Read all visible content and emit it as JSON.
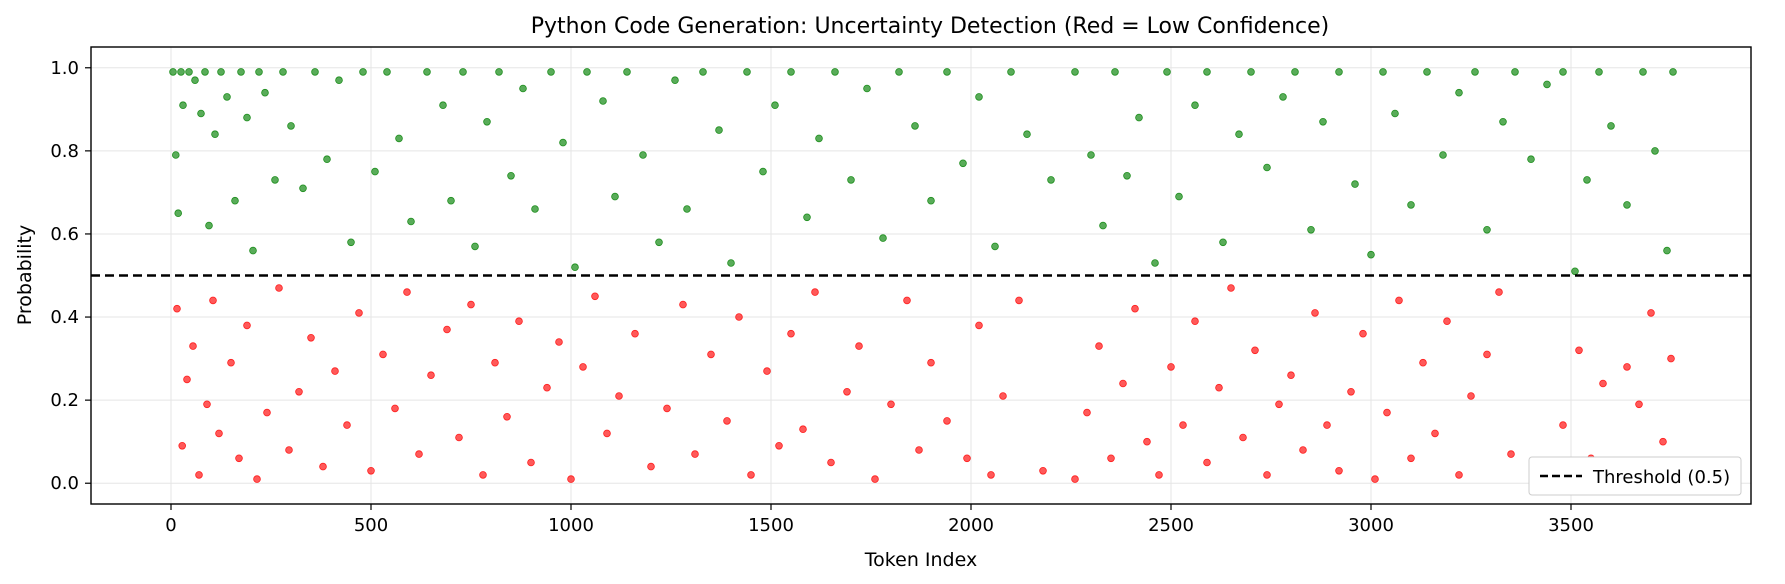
{
  "chart_data": {
    "type": "scatter",
    "title": "Python Code Generation: Uncertainty Detection (Red = Low Confidence)",
    "xlabel": "Token Index",
    "ylabel": "Probability",
    "xlim": [
      -200,
      3950
    ],
    "ylim": [
      -0.05,
      1.05
    ],
    "xticks": [
      0,
      500,
      1000,
      1500,
      2000,
      2500,
      3000,
      3500
    ],
    "yticks": [
      0.0,
      0.2,
      0.4,
      0.6,
      0.8,
      1.0
    ],
    "ytick_labels": [
      "0.0",
      "0.2",
      "0.4",
      "0.6",
      "0.8",
      "1.0"
    ],
    "grid": true,
    "threshold": 0.5,
    "legend": {
      "placement": "bottom-right",
      "entries": [
        "Threshold (0.5)"
      ]
    },
    "colors": {
      "high_confidence": "#008000",
      "low_confidence": "#ff0000",
      "threshold_line": "#000000"
    },
    "series": [
      {
        "color": "#008000",
        "points": [
          [
            5,
            0.99
          ],
          [
            12,
            0.79
          ],
          [
            18,
            0.65
          ],
          [
            25,
            0.99
          ],
          [
            30,
            0.91
          ],
          [
            45,
            0.99
          ],
          [
            60,
            0.97
          ],
          [
            75,
            0.89
          ],
          [
            85,
            0.99
          ],
          [
            95,
            0.62
          ],
          [
            110,
            0.84
          ],
          [
            125,
            0.99
          ],
          [
            140,
            0.93
          ],
          [
            160,
            0.68
          ],
          [
            175,
            0.99
          ],
          [
            190,
            0.88
          ],
          [
            205,
            0.56
          ],
          [
            220,
            0.99
          ],
          [
            235,
            0.94
          ],
          [
            260,
            0.73
          ],
          [
            280,
            0.99
          ],
          [
            300,
            0.86
          ],
          [
            330,
            0.71
          ],
          [
            360,
            0.99
          ],
          [
            390,
            0.78
          ],
          [
            420,
            0.97
          ],
          [
            450,
            0.58
          ],
          [
            480,
            0.99
          ],
          [
            510,
            0.75
          ],
          [
            540,
            0.99
          ],
          [
            570,
            0.83
          ],
          [
            600,
            0.63
          ],
          [
            640,
            0.99
          ],
          [
            680,
            0.91
          ],
          [
            700,
            0.68
          ],
          [
            730,
            0.99
          ],
          [
            760,
            0.57
          ],
          [
            790,
            0.87
          ],
          [
            820,
            0.99
          ],
          [
            850,
            0.74
          ],
          [
            880,
            0.95
          ],
          [
            910,
            0.66
          ],
          [
            950,
            0.99
          ],
          [
            980,
            0.82
          ],
          [
            1010,
            0.52
          ],
          [
            1040,
            0.99
          ],
          [
            1080,
            0.92
          ],
          [
            1110,
            0.69
          ],
          [
            1140,
            0.99
          ],
          [
            1180,
            0.79
          ],
          [
            1220,
            0.58
          ],
          [
            1260,
            0.97
          ],
          [
            1290,
            0.66
          ],
          [
            1330,
            0.99
          ],
          [
            1370,
            0.85
          ],
          [
            1400,
            0.53
          ],
          [
            1440,
            0.99
          ],
          [
            1480,
            0.75
          ],
          [
            1510,
            0.91
          ],
          [
            1550,
            0.99
          ],
          [
            1590,
            0.64
          ],
          [
            1620,
            0.83
          ],
          [
            1660,
            0.99
          ],
          [
            1700,
            0.73
          ],
          [
            1740,
            0.95
          ],
          [
            1780,
            0.59
          ],
          [
            1820,
            0.99
          ],
          [
            1860,
            0.86
          ],
          [
            1900,
            0.68
          ],
          [
            1940,
            0.99
          ],
          [
            1980,
            0.77
          ],
          [
            2020,
            0.93
          ],
          [
            2060,
            0.57
          ],
          [
            2100,
            0.99
          ],
          [
            2140,
            0.84
          ],
          [
            2200,
            0.73
          ],
          [
            2260,
            0.99
          ],
          [
            2300,
            0.79
          ],
          [
            2330,
            0.62
          ],
          [
            2360,
            0.99
          ],
          [
            2390,
            0.74
          ],
          [
            2420,
            0.88
          ],
          [
            2460,
            0.53
          ],
          [
            2490,
            0.99
          ],
          [
            2520,
            0.69
          ],
          [
            2560,
            0.91
          ],
          [
            2590,
            0.99
          ],
          [
            2630,
            0.58
          ],
          [
            2670,
            0.84
          ],
          [
            2700,
            0.99
          ],
          [
            2740,
            0.76
          ],
          [
            2780,
            0.93
          ],
          [
            2810,
            0.99
          ],
          [
            2850,
            0.61
          ],
          [
            2880,
            0.87
          ],
          [
            2920,
            0.99
          ],
          [
            2960,
            0.72
          ],
          [
            3000,
            0.55
          ],
          [
            3030,
            0.99
          ],
          [
            3060,
            0.89
          ],
          [
            3100,
            0.67
          ],
          [
            3140,
            0.99
          ],
          [
            3180,
            0.79
          ],
          [
            3220,
            0.94
          ],
          [
            3260,
            0.99
          ],
          [
            3290,
            0.61
          ],
          [
            3330,
            0.87
          ],
          [
            3360,
            0.99
          ],
          [
            3400,
            0.78
          ],
          [
            3440,
            0.96
          ],
          [
            3480,
            0.99
          ],
          [
            3510,
            0.51
          ],
          [
            3540,
            0.73
          ],
          [
            3570,
            0.99
          ],
          [
            3600,
            0.86
          ],
          [
            3640,
            0.67
          ],
          [
            3680,
            0.99
          ],
          [
            3710,
            0.8
          ],
          [
            3740,
            0.56
          ],
          [
            3755,
            0.99
          ]
        ]
      },
      {
        "color": "#ff0000",
        "points": [
          [
            15,
            0.42
          ],
          [
            28,
            0.09
          ],
          [
            40,
            0.25
          ],
          [
            55,
            0.33
          ],
          [
            70,
            0.02
          ],
          [
            90,
            0.19
          ],
          [
            105,
            0.44
          ],
          [
            120,
            0.12
          ],
          [
            150,
            0.29
          ],
          [
            170,
            0.06
          ],
          [
            190,
            0.38
          ],
          [
            215,
            0.01
          ],
          [
            240,
            0.17
          ],
          [
            270,
            0.47
          ],
          [
            295,
            0.08
          ],
          [
            320,
            0.22
          ],
          [
            350,
            0.35
          ],
          [
            380,
            0.04
          ],
          [
            410,
            0.27
          ],
          [
            440,
            0.14
          ],
          [
            470,
            0.41
          ],
          [
            500,
            0.03
          ],
          [
            530,
            0.31
          ],
          [
            560,
            0.18
          ],
          [
            590,
            0.46
          ],
          [
            620,
            0.07
          ],
          [
            650,
            0.26
          ],
          [
            690,
            0.37
          ],
          [
            720,
            0.11
          ],
          [
            750,
            0.43
          ],
          [
            780,
            0.02
          ],
          [
            810,
            0.29
          ],
          [
            840,
            0.16
          ],
          [
            870,
            0.39
          ],
          [
            900,
            0.05
          ],
          [
            940,
            0.23
          ],
          [
            970,
            0.34
          ],
          [
            1000,
            0.01
          ],
          [
            1030,
            0.28
          ],
          [
            1060,
            0.45
          ],
          [
            1090,
            0.12
          ],
          [
            1120,
            0.21
          ],
          [
            1160,
            0.36
          ],
          [
            1200,
            0.04
          ],
          [
            1240,
            0.18
          ],
          [
            1280,
            0.43
          ],
          [
            1310,
            0.07
          ],
          [
            1350,
            0.31
          ],
          [
            1390,
            0.15
          ],
          [
            1420,
            0.4
          ],
          [
            1450,
            0.02
          ],
          [
            1490,
            0.27
          ],
          [
            1520,
            0.09
          ],
          [
            1550,
            0.36
          ],
          [
            1580,
            0.13
          ],
          [
            1610,
            0.46
          ],
          [
            1650,
            0.05
          ],
          [
            1690,
            0.22
          ],
          [
            1720,
            0.33
          ],
          [
            1760,
            0.01
          ],
          [
            1800,
            0.19
          ],
          [
            1840,
            0.44
          ],
          [
            1870,
            0.08
          ],
          [
            1900,
            0.29
          ],
          [
            1940,
            0.15
          ],
          [
            1990,
            0.06
          ],
          [
            2020,
            0.38
          ],
          [
            2050,
            0.02
          ],
          [
            2080,
            0.21
          ],
          [
            2120,
            0.44
          ],
          [
            2180,
            0.03
          ],
          [
            2260,
            0.01
          ],
          [
            2290,
            0.17
          ],
          [
            2320,
            0.33
          ],
          [
            2350,
            0.06
          ],
          [
            2380,
            0.24
          ],
          [
            2410,
            0.42
          ],
          [
            2440,
            0.1
          ],
          [
            2470,
            0.02
          ],
          [
            2500,
            0.28
          ],
          [
            2530,
            0.14
          ],
          [
            2560,
            0.39
          ],
          [
            2590,
            0.05
          ],
          [
            2620,
            0.23
          ],
          [
            2650,
            0.47
          ],
          [
            2680,
            0.11
          ],
          [
            2710,
            0.32
          ],
          [
            2740,
            0.02
          ],
          [
            2770,
            0.19
          ],
          [
            2800,
            0.26
          ],
          [
            2830,
            0.08
          ],
          [
            2860,
            0.41
          ],
          [
            2890,
            0.14
          ],
          [
            2920,
            0.03
          ],
          [
            2950,
            0.22
          ],
          [
            2980,
            0.36
          ],
          [
            3010,
            0.01
          ],
          [
            3040,
            0.17
          ],
          [
            3070,
            0.44
          ],
          [
            3100,
            0.06
          ],
          [
            3130,
            0.29
          ],
          [
            3160,
            0.12
          ],
          [
            3190,
            0.39
          ],
          [
            3220,
            0.02
          ],
          [
            3250,
            0.21
          ],
          [
            3290,
            0.31
          ],
          [
            3320,
            0.46
          ],
          [
            3350,
            0.07
          ],
          [
            3480,
            0.14
          ],
          [
            3520,
            0.32
          ],
          [
            3550,
            0.06
          ],
          [
            3580,
            0.24
          ],
          [
            3610,
            0.01
          ],
          [
            3640,
            0.28
          ],
          [
            3670,
            0.19
          ],
          [
            3700,
            0.41
          ],
          [
            3730,
            0.1
          ],
          [
            3750,
            0.3
          ]
        ]
      }
    ]
  }
}
